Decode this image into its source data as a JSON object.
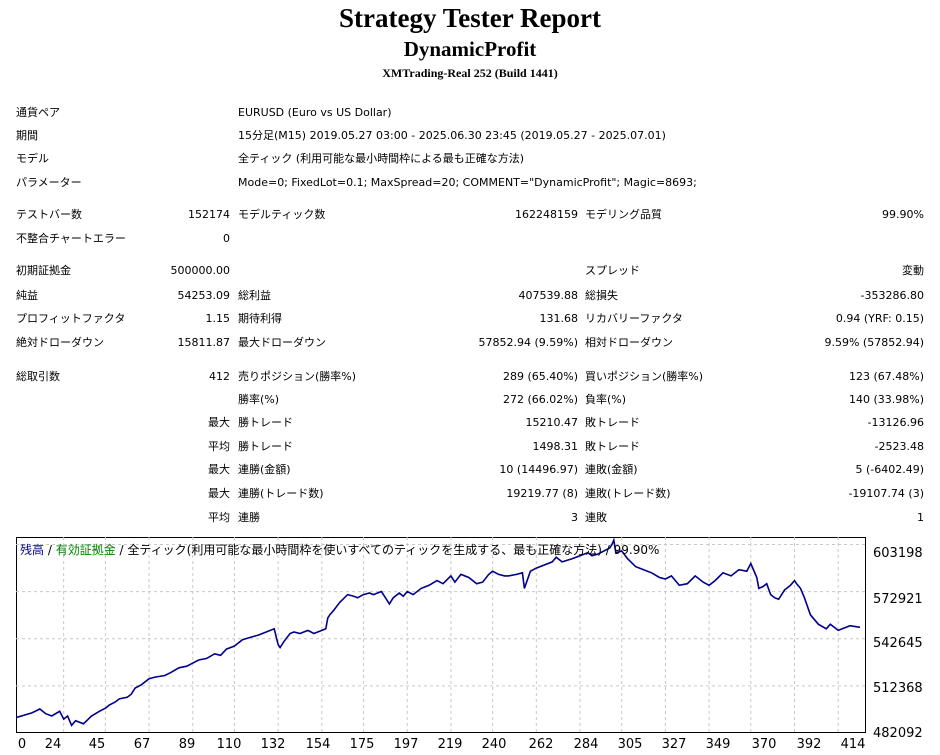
{
  "report": {
    "title": "Strategy Tester Report",
    "ea_name": "DynamicProfit",
    "server": "XMTrading-Real 252 (Build 1441)"
  },
  "info": [
    {
      "label": "通貨ペア",
      "value": "EURUSD (Euro vs US Dollar)"
    },
    {
      "label": "期間",
      "value": "15分足(M15) 2019.05.27 03:00 - 2025.06.30 23:45 (2019.05.27 - 2025.07.01)"
    },
    {
      "label": "モデル",
      "value": "全ティック (利用可能な最小時間枠による最も正確な方法)"
    },
    {
      "label": "パラメーター",
      "value": "Mode=0; FixedLot=0.1; MaxSpread=20; COMMENT=\"DynamicProfit\"; Magic=8693;"
    }
  ],
  "stats": {
    "bars_label": "テストバー数",
    "bars": "152174",
    "ticks_label": "モデルティック数",
    "ticks": "162248159",
    "quality_label": "モデリング品質",
    "quality": "99.90%",
    "mismatch_label": "不整合チャートエラー",
    "mismatch": "0",
    "deposit_label": "初期証拠金",
    "deposit": "500000.00",
    "spread_label": "スプレッド",
    "spread": "変動",
    "net_label": "純益",
    "net": "54253.09",
    "gross_profit_label": "総利益",
    "gross_profit": "407539.88",
    "gross_loss_label": "総損失",
    "gross_loss": "-353286.80",
    "pf_label": "プロフィットファクタ",
    "pf": "1.15",
    "expected_label": "期待利得",
    "expected": "131.68",
    "recovery_label": "リカバリーファクタ",
    "recovery": "0.94 (YRF: 0.15)",
    "abs_dd_label": "絶対ドローダウン",
    "abs_dd": "15811.87",
    "max_dd_label": "最大ドローダウン",
    "max_dd": "57852.94 (9.59%)",
    "rel_dd_label": "相対ドローダウン",
    "rel_dd": "9.59% (57852.94)",
    "trades_label": "総取引数",
    "trades": "412",
    "short_label": "売りポジション(勝率%)",
    "short": "289 (65.40%)",
    "long_label": "買いポジション(勝率%)",
    "long": "123 (67.48%)",
    "win_rate_label": "勝率(%)",
    "win_rate": "272 (66.02%)",
    "loss_rate_label": "負率(%)",
    "loss_rate": "140 (33.98%)",
    "max_prefix": "最大",
    "avg_prefix": "平均",
    "largest_win_label": "勝トレード",
    "largest_win": "15210.47",
    "largest_loss_label": "敗トレード",
    "largest_loss": "-13126.96",
    "avg_win_label": "勝トレード",
    "avg_win": "1498.31",
    "avg_loss_label": "敗トレード",
    "avg_loss": "-2523.48",
    "max_consec_win_amt_label": "連勝(金額)",
    "max_consec_win_amt": "10 (14496.97)",
    "max_consec_loss_amt_label": "連敗(金額)",
    "max_consec_loss_amt": "5 (-6402.49)",
    "max_consec_win_cnt_label": "連勝(トレード数)",
    "max_consec_win_cnt": "19219.77 (8)",
    "max_consec_loss_cnt_label": "連敗(トレード数)",
    "max_consec_loss_cnt": "-19107.74 (3)",
    "avg_consec_win_label": "連勝",
    "avg_consec_win": "3",
    "avg_consec_loss_label": "連敗",
    "avg_consec_loss": "1"
  },
  "chart_data": {
    "type": "line",
    "legend_balance": "残高",
    "legend_sep1": " / ",
    "legend_equity": "有効証拠金",
    "legend_sep2": " / ",
    "legend_rest": "全ティック(利用可能な最小時間枠を使いすべてのティックを生成する、最も正確な方法) / 99.90%",
    "balance_color": "#00008B",
    "equity_color": "#008000",
    "grid": true,
    "xlim": [
      0,
      428
    ],
    "ylim": [
      482092,
      608000
    ],
    "x_ticks": [
      "0",
      "24",
      "45",
      "67",
      "89",
      "110",
      "132",
      "154",
      "175",
      "197",
      "219",
      "240",
      "262",
      "284",
      "305",
      "327",
      "349",
      "370",
      "392",
      "414"
    ],
    "y_ticks": [
      "603198",
      "572921",
      "542645",
      "512368",
      "482092"
    ],
    "x": [
      0,
      8,
      12,
      15,
      18,
      22,
      24,
      26,
      28,
      30,
      34,
      38,
      42,
      45,
      47,
      50,
      52,
      56,
      58,
      60,
      63,
      67,
      70,
      75,
      78,
      82,
      86,
      89,
      92,
      96,
      100,
      103,
      106,
      110,
      114,
      118,
      122,
      126,
      130,
      132,
      133,
      135,
      138,
      140,
      143,
      147,
      150,
      154,
      156,
      157,
      158,
      160,
      163,
      167,
      170,
      172,
      175,
      178,
      180,
      184,
      186,
      188,
      190,
      193,
      195,
      197,
      200,
      204,
      208,
      212,
      215,
      219,
      221,
      224,
      228,
      232,
      235,
      238,
      240,
      243,
      246,
      248,
      252,
      255,
      256,
      259,
      262,
      266,
      270,
      272,
      275,
      280,
      284,
      288,
      290,
      293,
      296,
      299,
      300,
      301,
      302,
      305,
      308,
      312,
      316,
      320,
      324,
      327,
      330,
      334,
      338,
      342,
      346,
      349,
      352,
      356,
      360,
      364,
      368,
      370,
      373,
      374,
      376,
      378,
      380,
      382,
      384,
      387,
      390,
      392,
      393,
      395,
      397,
      400,
      404,
      408,
      410,
      412,
      414,
      420,
      425
    ],
    "y": [
      492000,
      495000,
      497500,
      494500,
      493000,
      496000,
      491000,
      493000,
      487000,
      490000,
      488000,
      493000,
      496000,
      498000,
      500000,
      502000,
      504000,
      505000,
      507000,
      511000,
      513000,
      517000,
      518000,
      519000,
      521000,
      524000,
      525000,
      527000,
      529000,
      530000,
      533000,
      532000,
      536000,
      538000,
      542000,
      543500,
      545000,
      547000,
      549000,
      539000,
      537000,
      541000,
      546000,
      547000,
      546000,
      548000,
      546000,
      548000,
      549000,
      556000,
      558000,
      561000,
      566000,
      571000,
      570000,
      569000,
      571000,
      572000,
      571000,
      573000,
      569000,
      565000,
      569000,
      572000,
      570000,
      573000,
      571000,
      575000,
      577000,
      580000,
      578000,
      583000,
      579000,
      584000,
      582000,
      578000,
      579000,
      584000,
      586000,
      584000,
      583000,
      583000,
      584000,
      585000,
      575000,
      586000,
      588000,
      590000,
      592000,
      595000,
      592000,
      594000,
      596000,
      598000,
      596000,
      597000,
      599000,
      601000,
      603000,
      606000,
      598000,
      599000,
      594000,
      589000,
      587000,
      585000,
      582000,
      581000,
      583000,
      577000,
      578000,
      583000,
      579000,
      577000,
      580000,
      585000,
      583000,
      587000,
      586000,
      591000,
      582000,
      575000,
      576000,
      578000,
      571000,
      569000,
      568000,
      574000,
      577000,
      580000,
      578000,
      575000,
      569000,
      558000,
      552000,
      549000,
      552000,
      550000,
      548000,
      551000,
      550000
    ]
  }
}
